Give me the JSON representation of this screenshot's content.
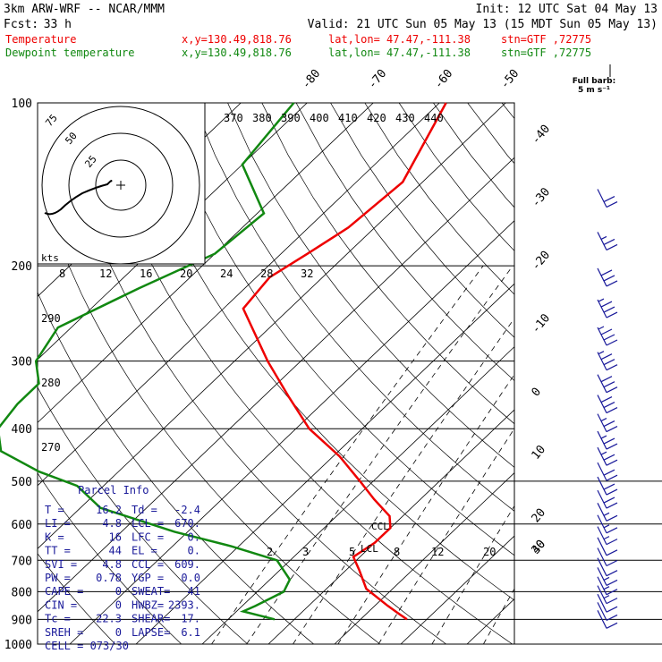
{
  "header": {
    "model": "3km ARW-WRF -- NCAR/MMM",
    "init": "Init: 12 UTC Sat 04 May 13",
    "fcst_label": "Fcst:",
    "fcst_value": "33 h",
    "valid": "Valid: 21 UTC Sun 05 May 13 (15 MDT Sun 05 May 13)",
    "temp_line": {
      "name": "Temperature",
      "xy": "x,y=130.49,818.76",
      "latlon": "lat,lon= 47.47,-111.38",
      "stn": "stn=GTF ,72775"
    },
    "dew_line": {
      "name": "Dewpoint temperature",
      "xy": "x,y=130.49,818.76",
      "latlon": "lat,lon= 47.47,-111.38",
      "stn": "stn=GTF ,72775"
    }
  },
  "colors": {
    "temperature": "#ee0000",
    "dewpoint": "#118811",
    "parcel": "#1a1a9a",
    "text": "#000000"
  },
  "barb_key": {
    "line1": "Full barb:",
    "line2": "5 m s⁻¹"
  },
  "hodograph": {
    "units": "kts",
    "rings": [
      "25",
      "50",
      "75"
    ]
  },
  "parcel_info": {
    "title": "Parcel Info",
    "rows": [
      [
        "T  =",
        "16.2",
        "Td =",
        "-2.4"
      ],
      [
        "LI =",
        "4.8",
        "LCL =",
        "670."
      ],
      [
        "K  =",
        "16",
        "LFC =",
        "0."
      ],
      [
        "TT =",
        "44",
        "EL  =",
        "0."
      ],
      [
        "SVI =",
        "4.8",
        "CCL =",
        "609."
      ],
      [
        "PW =",
        "0.78",
        "YGP =",
        "0.0"
      ],
      [
        "CAPE =",
        "0",
        "SWEAT=",
        "41"
      ],
      [
        "CIN =",
        "0",
        "HWBZ=",
        "2393."
      ],
      [
        "Tc =",
        "22.3",
        "SHEAR=",
        "17."
      ],
      [
        "SREH =",
        "0",
        "LAPSE=",
        "6.1"
      ]
    ],
    "cell": "CELL = 073/30"
  },
  "chart_data": {
    "type": "line",
    "title": "",
    "ylabel": "",
    "y_scale": "log-pressure",
    "ylim": [
      1000,
      100
    ],
    "pressure_ticks": [
      "100",
      "200",
      "300",
      "400",
      "500",
      "600",
      "700",
      "800",
      "900",
      "1000"
    ],
    "isotherm_labels": [
      "-80",
      "-70",
      "-60",
      "-50",
      "-40",
      "-30",
      "-20",
      "-10",
      "0",
      "10",
      "20",
      "30",
      "40"
    ],
    "theta_labels": [
      "370",
      "380",
      "390",
      "400",
      "410",
      "420",
      "430",
      "440"
    ],
    "theta_left_labels": [
      "290",
      "280",
      "270"
    ],
    "mixing_ratio_upper": [
      "8",
      "12",
      "16",
      "20",
      "24",
      "28",
      "32"
    ],
    "mixing_ratio_lower": [
      "2",
      "3",
      "5",
      "8",
      "12",
      "20"
    ],
    "annotations": [
      "CCL",
      "LCL"
    ],
    "series": [
      {
        "name": "Temperature",
        "pressure": [
          100,
          140,
          170,
          190,
          210,
          240,
          300,
          350,
          400,
          450,
          500,
          540,
          580,
          610,
          650,
          690,
          730,
          790,
          850,
          880,
          900
        ],
        "temp": [
          -59,
          -53,
          -54,
          -56,
          -58,
          -57,
          -45,
          -36,
          -28,
          -19,
          -12,
          -7,
          -2,
          0,
          0,
          -1,
          2,
          6,
          12,
          15,
          17
        ]
      },
      {
        "name": "Dewpoint temperature",
        "pressure": [
          100,
          130,
          160,
          190,
          220,
          260,
          300,
          330,
          360,
          400,
          440,
          480,
          510,
          560,
          620,
          660,
          700,
          760,
          800,
          850,
          870,
          900
        ],
        "temp": [
          -82,
          -80,
          -69,
          -70,
          -76,
          -82,
          -80,
          -76,
          -76,
          -75,
          -71,
          -62,
          -54,
          -47,
          -32,
          -21,
          -12,
          -7,
          -6,
          -8,
          -9,
          -3
        ]
      }
    ],
    "wind_barbs": {
      "pressure": [
        150,
        180,
        210,
        240,
        270,
        300,
        330,
        360,
        390,
        420,
        450,
        480,
        510,
        540,
        570,
        600,
        630,
        660,
        690,
        720,
        750,
        780,
        810,
        840,
        870,
        900
      ],
      "speed_ms": [
        20,
        25,
        30,
        35,
        35,
        35,
        30,
        30,
        25,
        25,
        25,
        20,
        20,
        20,
        15,
        15,
        15,
        10,
        10,
        10,
        15,
        15,
        15,
        10,
        10,
        10
      ]
    }
  }
}
